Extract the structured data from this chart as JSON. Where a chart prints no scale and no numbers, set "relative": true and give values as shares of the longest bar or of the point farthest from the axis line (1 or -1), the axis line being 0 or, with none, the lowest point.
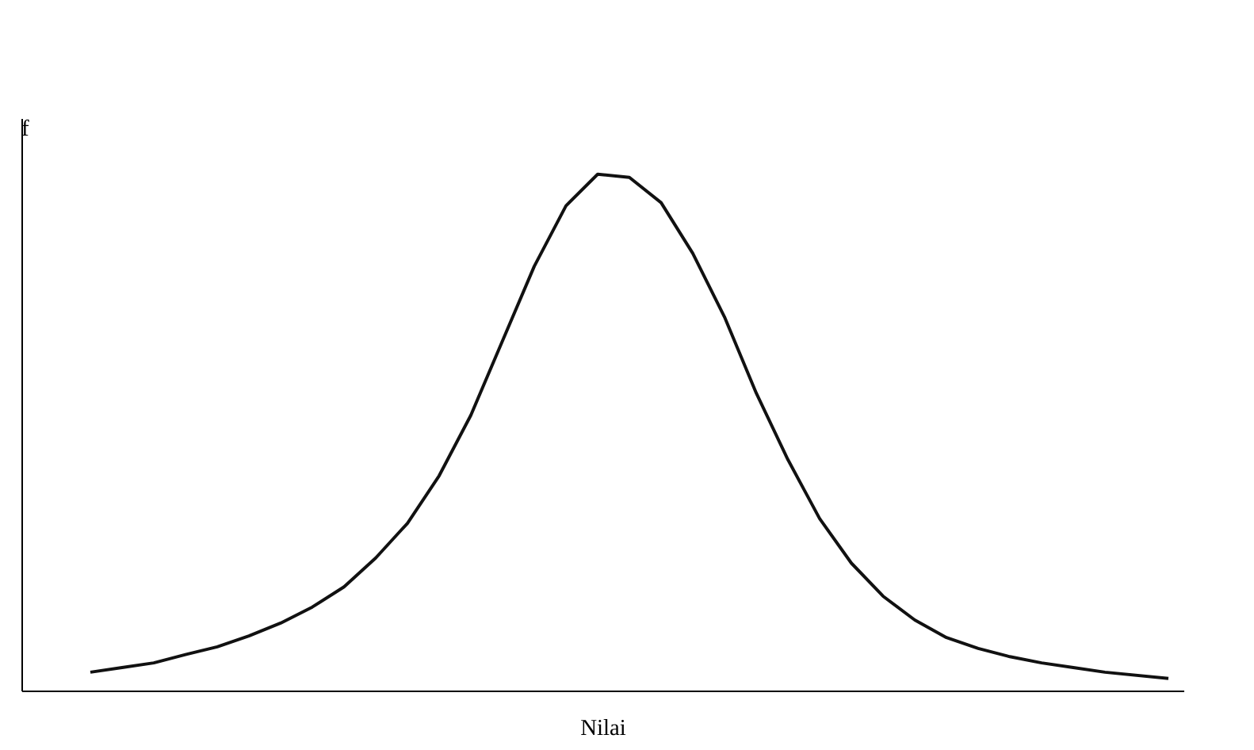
{
  "chart_data": {
    "type": "line",
    "relative": true,
    "xlabel": "Nilai",
    "ylabel": "f",
    "color": "#111111",
    "marker": "none",
    "line_style": "solid",
    "categories": [
      null,
      null,
      null,
      null,
      null,
      null,
      null,
      null,
      null,
      null,
      null,
      null,
      null,
      null,
      null,
      null,
      null,
      null,
      null,
      null,
      null,
      null,
      null,
      null,
      null,
      null,
      null,
      null,
      null,
      null,
      null,
      null,
      null,
      null,
      null
    ],
    "values": [
      0.037,
      0.046,
      0.055,
      0.071,
      0.086,
      0.107,
      0.132,
      0.163,
      0.202,
      0.258,
      0.325,
      0.417,
      0.534,
      0.678,
      0.822,
      0.939,
      1.0,
      0.994,
      0.945,
      0.847,
      0.724,
      0.577,
      0.448,
      0.334,
      0.248,
      0.184,
      0.138,
      0.104,
      0.083,
      0.067,
      0.055,
      0.046,
      0.037,
      0.031,
      0.025
    ]
  }
}
